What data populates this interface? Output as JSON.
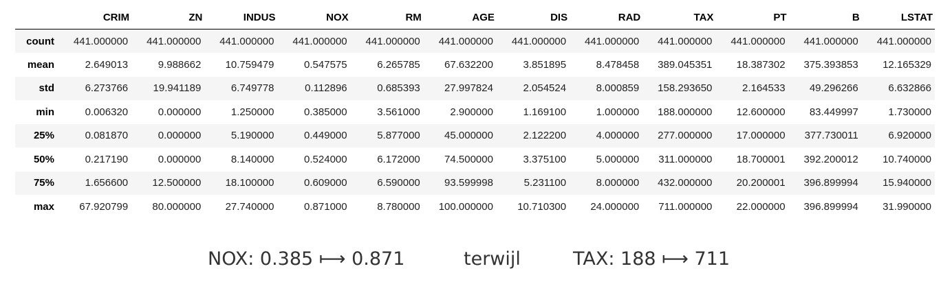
{
  "table": {
    "columns": [
      "CRIM",
      "ZN",
      "INDUS",
      "NOX",
      "RM",
      "AGE",
      "DIS",
      "RAD",
      "TAX",
      "PT",
      "B",
      "LSTAT"
    ],
    "rows": [
      {
        "label": "count",
        "values": [
          "441.000000",
          "441.000000",
          "441.000000",
          "441.000000",
          "441.000000",
          "441.000000",
          "441.000000",
          "441.000000",
          "441.000000",
          "441.000000",
          "441.000000",
          "441.000000"
        ]
      },
      {
        "label": "mean",
        "values": [
          "2.649013",
          "9.988662",
          "10.759479",
          "0.547575",
          "6.265785",
          "67.632200",
          "3.851895",
          "8.478458",
          "389.045351",
          "18.387302",
          "375.393853",
          "12.165329"
        ]
      },
      {
        "label": "std",
        "values": [
          "6.273766",
          "19.941189",
          "6.749778",
          "0.112896",
          "0.685393",
          "27.997824",
          "2.054524",
          "8.000859",
          "158.293650",
          "2.164533",
          "49.296266",
          "6.632866"
        ]
      },
      {
        "label": "min",
        "values": [
          "0.006320",
          "0.000000",
          "1.250000",
          "0.385000",
          "3.561000",
          "2.900000",
          "1.169100",
          "1.000000",
          "188.000000",
          "12.600000",
          "83.449997",
          "1.730000"
        ]
      },
      {
        "label": "25%",
        "values": [
          "0.081870",
          "0.000000",
          "5.190000",
          "0.449000",
          "5.877000",
          "45.000000",
          "2.122200",
          "4.000000",
          "277.000000",
          "17.000000",
          "377.730011",
          "6.920000"
        ]
      },
      {
        "label": "50%",
        "values": [
          "0.217190",
          "0.000000",
          "8.140000",
          "0.524000",
          "6.172000",
          "74.500000",
          "3.375100",
          "5.000000",
          "311.000000",
          "18.700001",
          "392.200012",
          "10.740000"
        ]
      },
      {
        "label": "75%",
        "values": [
          "1.656600",
          "12.500000",
          "18.100000",
          "0.609000",
          "6.590000",
          "93.599998",
          "5.231100",
          "8.000000",
          "432.000000",
          "20.200001",
          "396.899994",
          "15.940000"
        ]
      },
      {
        "label": "max",
        "values": [
          "67.920799",
          "80.000000",
          "27.740000",
          "0.871000",
          "8.780000",
          "100.000000",
          "10.710300",
          "24.000000",
          "711.000000",
          "22.000000",
          "396.899994",
          "31.990000"
        ]
      }
    ]
  },
  "caption": {
    "nox_label": "NOX: 0.385",
    "nox_arrow": "⟼",
    "nox_max": "0.871",
    "connector": "terwijl",
    "tax_label": "TAX: 188",
    "tax_arrow": "⟼",
    "tax_max": "711"
  }
}
